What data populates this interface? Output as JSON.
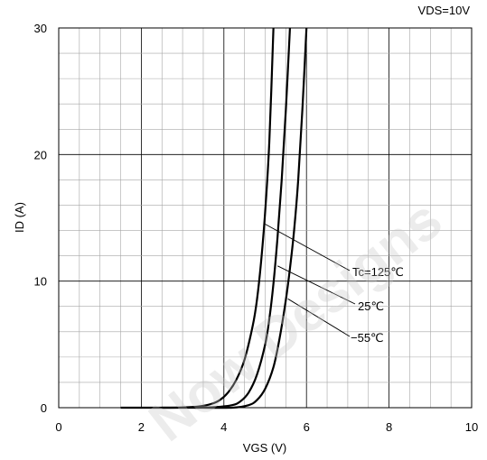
{
  "chart_data": {
    "type": "line",
    "title": "",
    "condition_label": "VDS=10V",
    "xlabel": "VGS (V)",
    "ylabel": "ID (A)",
    "xlim": [
      0,
      10
    ],
    "ylim": [
      0,
      30
    ],
    "x_ticks": [
      "0",
      "2",
      "4",
      "6",
      "8",
      "10"
    ],
    "y_ticks": [
      "0",
      "10",
      "20",
      "30"
    ],
    "x_minor_step": 0.5,
    "y_minor_step": 2,
    "grid": true,
    "line_color": "#000000",
    "watermark_text": "Now Designs",
    "series": [
      {
        "name": "Tc=125℃",
        "x": [
          1.5,
          2.5,
          3.0,
          3.4,
          3.7,
          3.9,
          4.1,
          4.3,
          4.5,
          4.7,
          4.8,
          4.9,
          5.0,
          5.1,
          5.2
        ],
        "y": [
          0,
          0,
          0.02,
          0.1,
          0.3,
          0.6,
          1.2,
          2.2,
          3.8,
          6.5,
          8.5,
          11.5,
          15.5,
          21.0,
          30.0
        ]
      },
      {
        "name": "25℃",
        "x": [
          2.5,
          3.3,
          3.8,
          4.2,
          4.4,
          4.6,
          4.8,
          5.0,
          5.1,
          5.2,
          5.3,
          5.4,
          5.5,
          5.6
        ],
        "y": [
          0,
          0,
          0.05,
          0.2,
          0.5,
          1.2,
          2.6,
          5.0,
          7.0,
          9.8,
          13.5,
          18.0,
          23.5,
          30.0
        ]
      },
      {
        "name": "−55℃",
        "x": [
          3.3,
          4.2,
          4.6,
          4.8,
          5.0,
          5.2,
          5.35,
          5.5,
          5.6,
          5.7,
          5.8,
          5.9,
          6.0
        ],
        "y": [
          0,
          0,
          0.2,
          0.6,
          1.5,
          3.2,
          5.5,
          8.5,
          11.0,
          14.0,
          18.0,
          23.5,
          30.0
        ]
      }
    ],
    "annotations": [
      {
        "text": "Tc=125℃",
        "series": "Tc=125℃"
      },
      {
        "text": "25℃",
        "series": "25℃"
      },
      {
        "text": "−55℃",
        "series": "−55℃"
      }
    ]
  }
}
